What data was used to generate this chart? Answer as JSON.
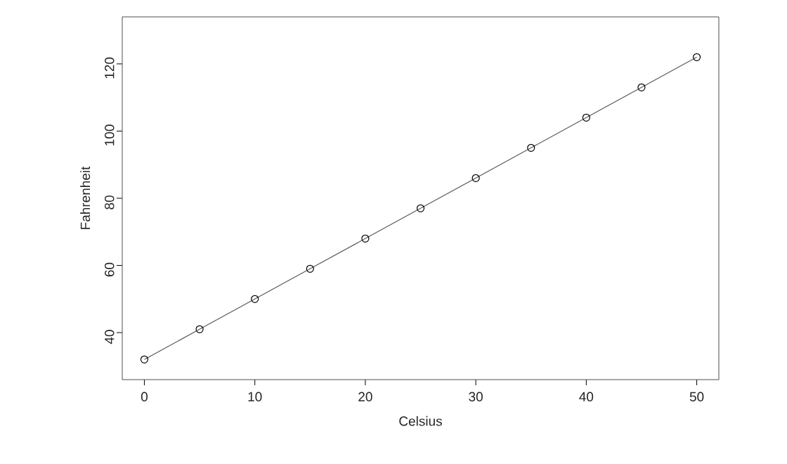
{
  "chart_data": {
    "type": "line",
    "xlabel": "Celsius",
    "ylabel": "Fahrenheit",
    "x": [
      0,
      5,
      10,
      15,
      20,
      25,
      30,
      35,
      40,
      45,
      50
    ],
    "values": [
      32,
      41,
      50,
      59,
      68,
      77,
      86,
      95,
      104,
      113,
      122
    ],
    "color": "#000000",
    "marker": "circle",
    "line_style": "solid",
    "xlim": [
      -2,
      52
    ],
    "ylim": [
      26,
      134
    ],
    "xticks": [
      0,
      10,
      20,
      30,
      40,
      50
    ],
    "yticks": [
      40,
      60,
      80,
      100,
      120
    ]
  }
}
